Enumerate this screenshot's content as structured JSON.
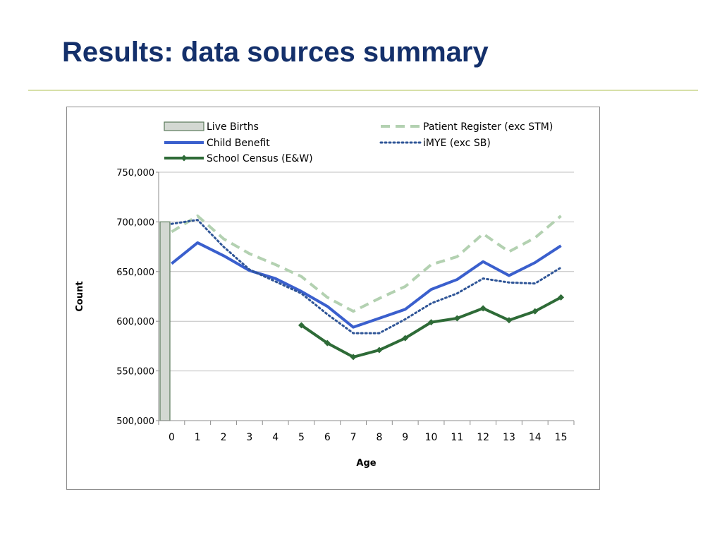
{
  "slide": {
    "title": "Results: data sources summary"
  },
  "chart_data": {
    "type": "line",
    "xlabel": "Age",
    "ylabel": "Count",
    "ylim": [
      500000,
      750000
    ],
    "ytick_labels": [
      "500,000",
      "550,000",
      "600,000",
      "650,000",
      "700,000",
      "750,000"
    ],
    "yticks": [
      500000,
      550000,
      600000,
      650000,
      700000,
      750000
    ],
    "categories": [
      "0",
      "1",
      "2",
      "3",
      "4",
      "5",
      "6",
      "7",
      "8",
      "9",
      "10",
      "11",
      "12",
      "13",
      "14",
      "15"
    ],
    "grid": "horizontal",
    "legend_position": "top",
    "series": [
      {
        "name": "Live Births",
        "kind": "bar",
        "color": "#d3d8d2",
        "edge": "#5a7a5a",
        "x": [
          "0"
        ],
        "values": [
          700000
        ]
      },
      {
        "name": "Child Benefit",
        "kind": "line",
        "style": "solid",
        "color": "#3a5fcd",
        "x": [
          "0",
          "1",
          "2",
          "3",
          "4",
          "5",
          "6",
          "7",
          "8",
          "9",
          "10",
          "11",
          "12",
          "13",
          "14",
          "15"
        ],
        "values": [
          658000,
          679000,
          666000,
          651000,
          643000,
          630000,
          615000,
          594000,
          603000,
          612000,
          632000,
          642000,
          660000,
          646000,
          659000,
          676000
        ]
      },
      {
        "name": "School Census (E&W)",
        "kind": "line",
        "style": "solid-marker",
        "color": "#2e6b37",
        "x": [
          "5",
          "6",
          "7",
          "8",
          "9",
          "10",
          "11",
          "12",
          "13",
          "14",
          "15"
        ],
        "values": [
          596000,
          578000,
          564000,
          571000,
          583000,
          599000,
          603000,
          613000,
          601000,
          610000,
          624000
        ]
      },
      {
        "name": "Patient Register (exc STM)",
        "kind": "line",
        "style": "dashed",
        "color": "#b3d1b1",
        "x": [
          "0",
          "1",
          "2",
          "3",
          "4",
          "5",
          "6",
          "7",
          "8",
          "9",
          "10",
          "11",
          "12",
          "13",
          "14",
          "15"
        ],
        "values": [
          690000,
          706000,
          683000,
          668000,
          657000,
          645000,
          624000,
          610000,
          623000,
          635000,
          657000,
          665000,
          688000,
          670000,
          684000,
          706000
        ]
      },
      {
        "name": "iMYE (exc SB)",
        "kind": "line",
        "style": "dotted",
        "color": "#2f5597",
        "x": [
          "0",
          "1",
          "2",
          "3",
          "4",
          "5",
          "6",
          "7",
          "8",
          "9",
          "10",
          "11",
          "12",
          "13",
          "14",
          "15"
        ],
        "values": [
          698000,
          702000,
          675000,
          652000,
          640000,
          628000,
          607000,
          588000,
          588000,
          602000,
          618000,
          628000,
          643000,
          639000,
          638000,
          654000
        ]
      }
    ]
  }
}
